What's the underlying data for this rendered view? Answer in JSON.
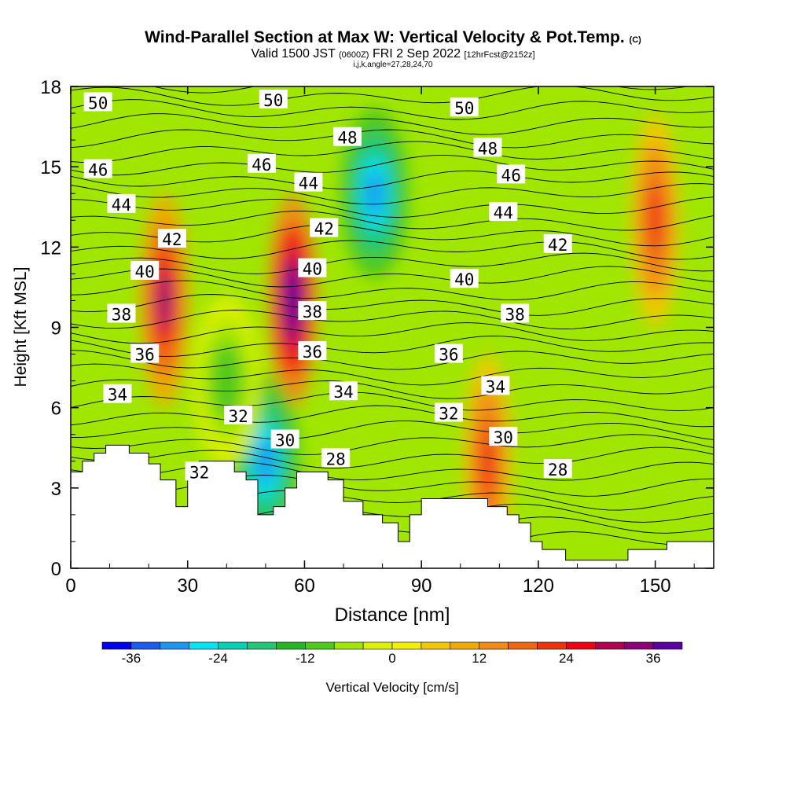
{
  "title": {
    "main": "Wind-Parallel Section at Max W: Vertical Velocity & Pot.Temp.",
    "units_tag": "(C)",
    "valid_prefix": "Valid 1500 JST",
    "valid_utc": "(0600Z)",
    "valid_date": "FRI 2 Sep 2022",
    "forecast": "[12hrFcst@2152z]",
    "indices": "i,j,k,angle=27,28,24,70"
  },
  "colors": {
    "scale": [
      "#0000f0",
      "#1e5af0",
      "#1e96f0",
      "#00e6f0",
      "#00d2b4",
      "#1ec878",
      "#28b428",
      "#50c81e",
      "#a0e600",
      "#dcf000",
      "#f0f000",
      "#f0c800",
      "#f0aa00",
      "#f08c14",
      "#f06414",
      "#f03214",
      "#f00014",
      "#b40050",
      "#8c0078",
      "#5a00a0"
    ],
    "colorbar_labels": [
      "-36",
      "-24",
      "-12",
      "0",
      "12",
      "24",
      "36"
    ],
    "colorbar_title": "Vertical Velocity [cm/s]"
  },
  "chart_data": {
    "type": "heatmap",
    "xlabel": "Distance [nm]",
    "ylabel": "Height [Kft MSL]",
    "xlim": [
      0,
      165
    ],
    "ylim": [
      0,
      18
    ],
    "x_ticks": [
      0,
      30,
      60,
      90,
      120,
      150
    ],
    "y_ticks": [
      0,
      3,
      6,
      9,
      12,
      15,
      18
    ],
    "field": "Vertical Velocity [cm/s]",
    "field_range": [
      -40,
      40
    ],
    "updraft_cores": [
      {
        "x": 24,
        "y": 10,
        "value": 32
      },
      {
        "x": 57,
        "y": 10,
        "value": 40
      },
      {
        "x": 150,
        "y": 13,
        "value": 22
      },
      {
        "x": 107,
        "y": 4,
        "value": 20
      }
    ],
    "downdraft_cores": [
      {
        "x": 78,
        "y": 14,
        "value": -30
      },
      {
        "x": 50,
        "y": 4,
        "value": -30
      },
      {
        "x": 40,
        "y": 7,
        "value": -10
      }
    ],
    "terrain": [
      [
        0,
        3.6
      ],
      [
        3,
        3.6
      ],
      [
        3,
        4
      ],
      [
        6,
        4
      ],
      [
        6,
        4.3
      ],
      [
        9,
        4.3
      ],
      [
        9,
        4.6
      ],
      [
        15,
        4.6
      ],
      [
        15,
        4.3
      ],
      [
        20,
        4.3
      ],
      [
        20,
        3.9
      ],
      [
        23,
        3.9
      ],
      [
        23,
        3.3
      ],
      [
        27,
        3.3
      ],
      [
        27,
        2.3
      ],
      [
        30,
        2.3
      ],
      [
        30,
        3.6
      ],
      [
        33,
        3.6
      ],
      [
        33,
        4
      ],
      [
        42,
        4
      ],
      [
        42,
        3.6
      ],
      [
        45,
        3.6
      ],
      [
        45,
        3.3
      ],
      [
        48,
        3.3
      ],
      [
        48,
        2
      ],
      [
        52,
        2
      ],
      [
        52,
        2.3
      ],
      [
        55,
        2.3
      ],
      [
        55,
        3
      ],
      [
        58,
        3
      ],
      [
        58,
        3.6
      ],
      [
        66,
        3.6
      ],
      [
        66,
        3.3
      ],
      [
        70,
        3.3
      ],
      [
        70,
        2.5
      ],
      [
        75,
        2.5
      ],
      [
        75,
        2
      ],
      [
        80,
        2
      ],
      [
        80,
        1.7
      ],
      [
        84,
        1.7
      ],
      [
        84,
        1
      ],
      [
        87,
        1
      ],
      [
        87,
        2
      ],
      [
        90,
        2
      ],
      [
        90,
        2.6
      ],
      [
        107,
        2.6
      ],
      [
        107,
        2.3
      ],
      [
        112,
        2.3
      ],
      [
        112,
        2
      ],
      [
        115,
        2
      ],
      [
        115,
        1.7
      ],
      [
        118,
        1.7
      ],
      [
        118,
        1
      ],
      [
        121,
        1
      ],
      [
        121,
        0.7
      ],
      [
        127,
        0.7
      ],
      [
        127,
        0.3
      ],
      [
        143,
        0.3
      ],
      [
        143,
        0.7
      ],
      [
        153,
        0.7
      ],
      [
        153,
        1
      ],
      [
        165,
        1
      ]
    ],
    "theta_labels": [
      {
        "text": "50",
        "x": 7,
        "y": 17.4
      },
      {
        "text": "50",
        "x": 52,
        "y": 17.5
      },
      {
        "text": "50",
        "x": 101,
        "y": 17.2
      },
      {
        "text": "48",
        "x": 71,
        "y": 16.1
      },
      {
        "text": "48",
        "x": 107,
        "y": 15.7
      },
      {
        "text": "46",
        "x": 7,
        "y": 14.9
      },
      {
        "text": "46",
        "x": 49,
        "y": 15.1
      },
      {
        "text": "46",
        "x": 113,
        "y": 14.7
      },
      {
        "text": "44",
        "x": 13,
        "y": 13.6
      },
      {
        "text": "44",
        "x": 61,
        "y": 14.4
      },
      {
        "text": "44",
        "x": 111,
        "y": 13.3
      },
      {
        "text": "42",
        "x": 26,
        "y": 12.3
      },
      {
        "text": "42",
        "x": 65,
        "y": 12.7
      },
      {
        "text": "42",
        "x": 125,
        "y": 12.1
      },
      {
        "text": "40",
        "x": 19,
        "y": 11.1
      },
      {
        "text": "40",
        "x": 62,
        "y": 11.2
      },
      {
        "text": "40",
        "x": 101,
        "y": 10.8
      },
      {
        "text": "38",
        "x": 13,
        "y": 9.5
      },
      {
        "text": "38",
        "x": 62,
        "y": 9.6
      },
      {
        "text": "38",
        "x": 114,
        "y": 9.5
      },
      {
        "text": "36",
        "x": 19,
        "y": 8.0
      },
      {
        "text": "36",
        "x": 62,
        "y": 8.1
      },
      {
        "text": "36",
        "x": 97,
        "y": 8.0
      },
      {
        "text": "34",
        "x": 12,
        "y": 6.5
      },
      {
        "text": "34",
        "x": 70,
        "y": 6.6
      },
      {
        "text": "34",
        "x": 109,
        "y": 6.8
      },
      {
        "text": "32",
        "x": 43,
        "y": 5.7
      },
      {
        "text": "32",
        "x": 97,
        "y": 5.8
      },
      {
        "text": "32",
        "x": 33,
        "y": 3.6
      },
      {
        "text": "30",
        "x": 55,
        "y": 4.8
      },
      {
        "text": "30",
        "x": 111,
        "y": 4.9
      },
      {
        "text": "28",
        "x": 68,
        "y": 4.1
      },
      {
        "text": "28",
        "x": 125,
        "y": 3.7
      }
    ]
  }
}
